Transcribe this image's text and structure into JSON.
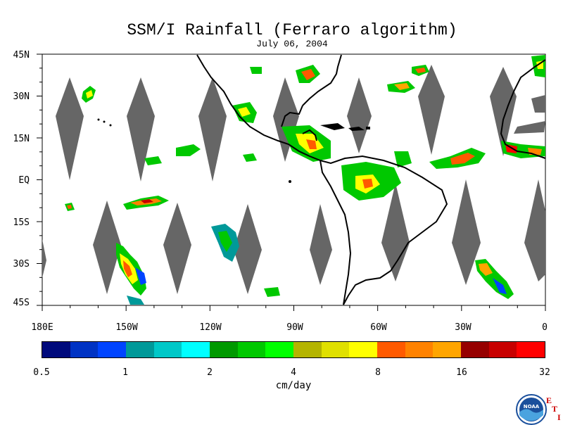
{
  "map": {
    "title": "SSM/I Rainfall (Ferraro algorithm)",
    "date": "July 06, 2004",
    "lat_labels": [
      "45N",
      "30N",
      "15N",
      "EQ",
      "15S",
      "30S",
      "45S"
    ],
    "lon_labels": [
      "180E",
      "150W",
      "120W",
      "90W",
      "60W",
      "30W",
      "0"
    ],
    "extent": {
      "lon_min": -180,
      "lon_max": 0,
      "lat_min": -45,
      "lat_max": 45
    },
    "no_data_color": "#666666",
    "coastline_color": "#000000"
  },
  "colorbar": {
    "units": "cm/day",
    "tick_labels": [
      "0.5",
      "1",
      "2",
      "4",
      "8",
      "16",
      "32"
    ],
    "colors": [
      "#000a7c",
      "#0033c4",
      "#0044ff",
      "#009999",
      "#00c8c8",
      "#00ffff",
      "#009900",
      "#00c800",
      "#00ff00",
      "#b4b400",
      "#e0e000",
      "#ffff00",
      "#ff5a00",
      "#ff8200",
      "#ffa500",
      "#960000",
      "#c80000",
      "#ff0000"
    ]
  },
  "logo": {
    "name": "NOAA",
    "side_text": [
      "E",
      "T",
      "I"
    ]
  }
}
